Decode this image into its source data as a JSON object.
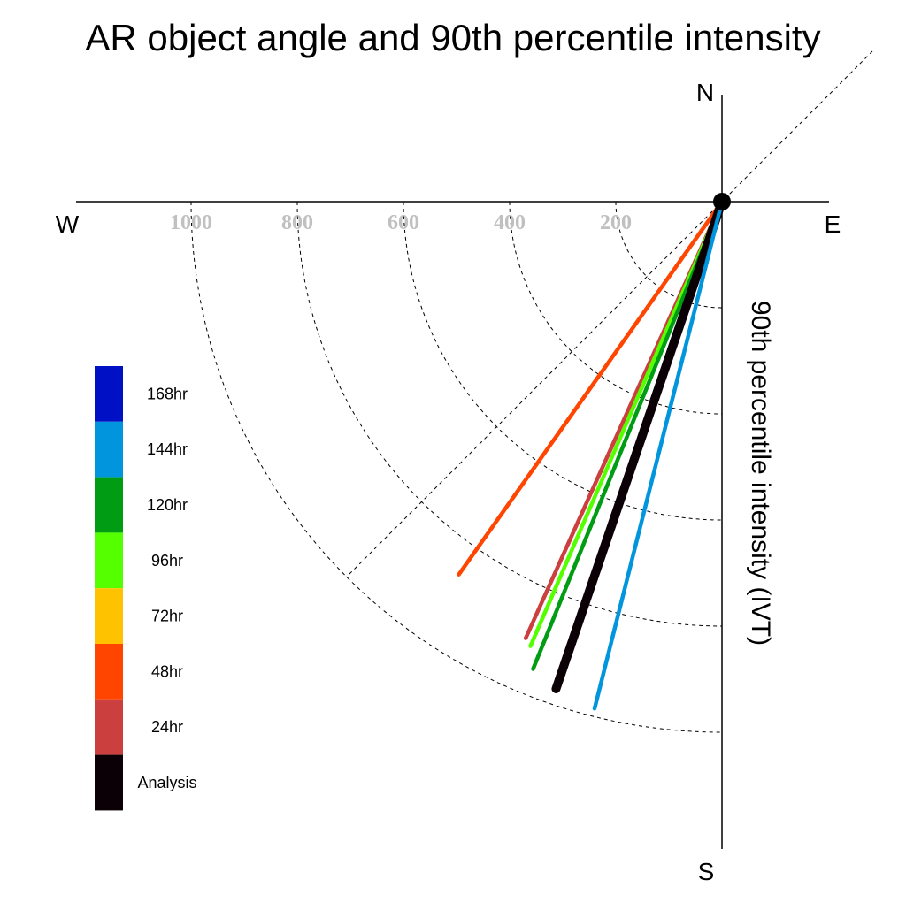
{
  "chart_data": {
    "type": "polar-vector",
    "title": "AR object angle and 90th percentile intensity",
    "radial_label": "90th percentile intensity (IVT)",
    "directions": {
      "north": "N",
      "south": "S",
      "east": "E",
      "west": "W"
    },
    "radial_ticks": [
      {
        "value": 200,
        "label": "200"
      },
      {
        "value": 400,
        "label": "400"
      },
      {
        "value": 600,
        "label": "600"
      },
      {
        "value": 800,
        "label": "800"
      },
      {
        "value": 1000,
        "label": "1000"
      }
    ],
    "radial_max": 1000,
    "angle_convention": "degrees clockwise from North",
    "series": [
      {
        "name": "48hr",
        "color": "#ff4500",
        "angle": 215.2,
        "intensity": 860
      },
      {
        "name": "24hr",
        "color": "#cc3f3f",
        "angle": 204.2,
        "intensity": 902
      },
      {
        "name": "96hr",
        "color": "#55ff00",
        "angle": 203.3,
        "intensity": 912
      },
      {
        "name": "120hr",
        "color": "#009c13",
        "angle": 202.0,
        "intensity": 950
      },
      {
        "name": "Analysis",
        "color": "#0a0006",
        "angle": 198.8,
        "intensity": 970,
        "emphasis": true
      },
      {
        "name": "144hr",
        "color": "#0095dc",
        "angle": 194.1,
        "intensity": 985
      }
    ],
    "legend": [
      {
        "label": "168hr",
        "color": "#0010c4"
      },
      {
        "label": "144hr",
        "color": "#0095dc"
      },
      {
        "label": "120hr",
        "color": "#009c13"
      },
      {
        "label": "96hr",
        "color": "#55ff00"
      },
      {
        "label": "72hr",
        "color": "#ffc200"
      },
      {
        "label": "48hr",
        "color": "#ff4500"
      },
      {
        "label": "24hr",
        "color": "#cc3f3f"
      },
      {
        "label": "Analysis",
        "color": "#0a0006"
      }
    ],
    "legend_placement": "left",
    "grid": true
  }
}
